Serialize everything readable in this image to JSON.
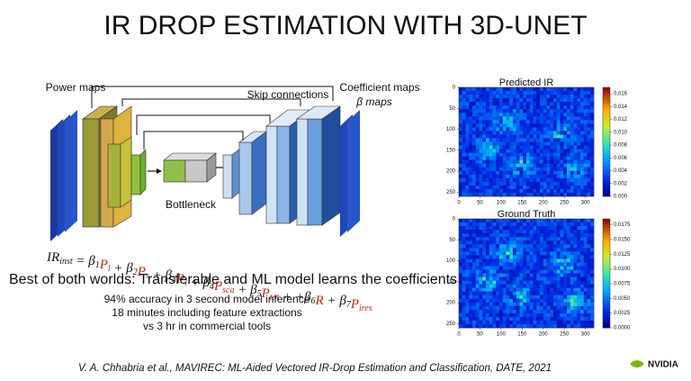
{
  "title": "IR DROP ESTIMATION WITH 3D-UNET",
  "diagram": {
    "input_label": "Power maps",
    "skip_label": "Skip connections",
    "bottleneck_label": "Bottleneck",
    "output_label": "Coefficient maps",
    "output_sublabel": "β maps"
  },
  "equation": {
    "parts": [
      {
        "text": "IR",
        "sub": "inst"
      },
      {
        "text": " = β",
        "sub": "1"
      },
      {
        "text": "P",
        "sub": "l",
        "red": true
      },
      {
        "text": " + β",
        "sub": "2"
      },
      {
        "text": "P",
        "sub": "s",
        "red": true
      },
      {
        "text": " + β",
        "sub": "3"
      },
      {
        "text": "P",
        "sub": "l",
        "red": true
      },
      {
        "text": " + β",
        "sub": "4"
      },
      {
        "text": "P",
        "sub": "sca",
        "red": true
      },
      {
        "text": " + β",
        "sub": "5"
      },
      {
        "text": "P",
        "sub": "tot",
        "red": true
      },
      {
        "text": " + +β",
        "sub": "6"
      },
      {
        "text": "R",
        "red": true
      },
      {
        "text": " + β",
        "sub": "7"
      },
      {
        "text": "P",
        "sub": "ires",
        "red": true
      }
    ]
  },
  "headline": "Best of both worlds: Transferable and ML model learns the coefficients",
  "bullets": [
    "94% accuracy in 3 second model inference",
    "18 minutes including feature extractions",
    "vs 3 hr in commercial tools"
  ],
  "citation": "V. A. Chhabria et al., MAVIREC: ML-Aided Vectored IR-Drop Estimation and Classification, DATE, 2021",
  "logo": "NVIDIA",
  "heatmaps": [
    {
      "title": "Predicted IR",
      "xticks": [
        0,
        50,
        100,
        150,
        200,
        250,
        300
      ],
      "yticks": [
        0,
        50,
        100,
        150,
        200,
        250
      ],
      "colorbar_ticks": [
        {
          "value": 0,
          "label": "0.000"
        },
        {
          "value": 0.002,
          "label": "0.002"
        },
        {
          "value": 0.004,
          "label": "0.004"
        },
        {
          "value": 0.006,
          "label": "0.006"
        },
        {
          "value": 0.008,
          "label": "0.008"
        },
        {
          "value": 0.01,
          "label": "0.010"
        },
        {
          "value": 0.012,
          "label": "0.012"
        },
        {
          "value": 0.014,
          "label": "0.014"
        },
        {
          "value": 0.016,
          "label": "0.016"
        }
      ],
      "colorbar_max": 0.017
    },
    {
      "title": "Ground Truth",
      "xticks": [
        0,
        50,
        100,
        150,
        200,
        250,
        300
      ],
      "yticks": [
        0,
        50,
        100,
        150,
        200,
        250
      ],
      "colorbar_ticks": [
        {
          "value": 0,
          "label": "0.0000"
        },
        {
          "value": 0.0025,
          "label": "0.0025"
        },
        {
          "value": 0.005,
          "label": "0.0050"
        },
        {
          "value": 0.0075,
          "label": "0.0075"
        },
        {
          "value": 0.01,
          "label": "0.0100"
        },
        {
          "value": 0.0125,
          "label": "0.0125"
        },
        {
          "value": 0.015,
          "label": "0.0150"
        },
        {
          "value": 0.0175,
          "label": "0.0175"
        }
      ],
      "colorbar_max": 0.0185
    }
  ]
}
